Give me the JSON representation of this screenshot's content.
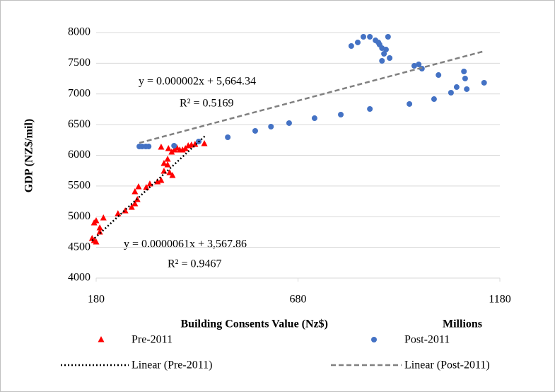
{
  "chart_data": {
    "type": "scatter",
    "x_label": "Building Consents Value (Nz$)",
    "x_unit_label": "Millions",
    "y_label": "GDP (NZ$/mil)",
    "xlim": [
      180,
      1180
    ],
    "xticks": [
      180,
      680,
      1180
    ],
    "ylim": [
      4000,
      8000
    ],
    "yticks": [
      4000,
      4500,
      5000,
      5500,
      6000,
      6500,
      7000,
      7500,
      8000
    ],
    "grid": true,
    "series": [
      {
        "name": "Pre-2011",
        "color": "#ff0000",
        "marker": "triangle",
        "x": [
          170,
          175,
          180,
          175,
          180,
          189,
          189,
          198,
          234,
          252,
          268,
          276,
          282,
          276,
          285,
          304,
          313,
          332,
          341,
          348,
          348,
          357,
          362,
          369,
          357,
          367,
          374,
          380,
          387,
          394,
          401,
          408,
          416,
          425,
          448,
          341,
          359
        ],
        "values": [
          4646,
          4611,
          4588,
          4899,
          4934,
          4749,
          4819,
          4980,
          5049,
          5095,
          5153,
          5210,
          5280,
          5406,
          5487,
          5476,
          5533,
          5568,
          5591,
          5741,
          5867,
          5844,
          5718,
          5672,
          5937,
          6052,
          6087,
          6121,
          6087,
          6087,
          6110,
          6156,
          6167,
          6179,
          6190,
          6133,
          6110
        ]
      },
      {
        "name": "Post-2011",
        "color": "#4472c4",
        "marker": "circle",
        "x": [
          287,
          294,
          303,
          310,
          373,
          434,
          506,
          574,
          613,
          658,
          721,
          786,
          858,
          812,
          828,
          842,
          858,
          872,
          879,
          882,
          888,
          893,
          898,
          888,
          903,
          907,
          968,
          979,
          987,
          1028,
          956,
          1017,
          1059,
          1073,
          1091,
          1094,
          1098,
          1141
        ],
        "values": [
          6144,
          6144,
          6144,
          6144,
          6156,
          6225,
          6294,
          6398,
          6467,
          6525,
          6605,
          6663,
          6755,
          7781,
          7839,
          7931,
          7931,
          7873,
          7839,
          7804,
          7746,
          7654,
          7723,
          7539,
          7931,
          7585,
          7458,
          7481,
          7412,
          7308,
          6836,
          6916,
          7020,
          7112,
          7366,
          7251,
          7078,
          7182
        ]
      }
    ],
    "trendlines": [
      {
        "name": "Linear (Pre-2011)",
        "color": "#000000",
        "dash": "dotted",
        "x": [
          170,
          450
        ],
        "values": [
          4611,
          6317
        ]
      },
      {
        "name": "Linear (Post-2011)",
        "color": "#808080",
        "dash": "dashed",
        "x": [
          287,
          1143
        ],
        "values": [
          6202,
          7700
        ]
      }
    ],
    "annotations": [
      {
        "text": "y = 0.000002x + 5,664.34"
      },
      {
        "text": "R² = 0.5169"
      },
      {
        "text": "y = 0.0000061x + 3,567.86"
      },
      {
        "text": "R² = 0.9467"
      }
    ]
  }
}
